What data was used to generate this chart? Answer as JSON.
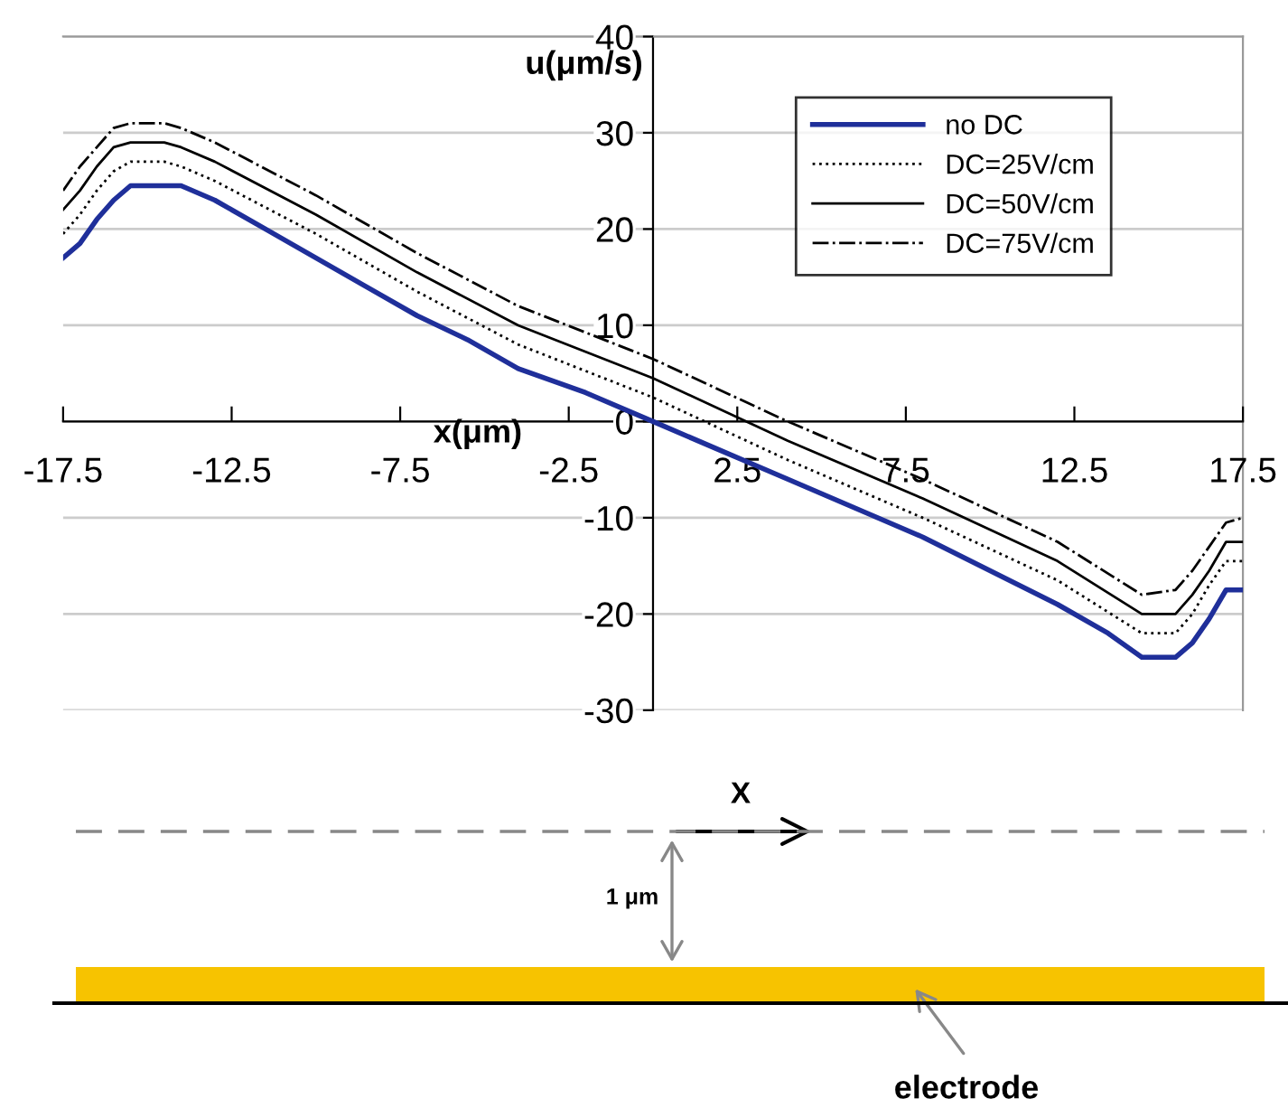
{
  "chart_data": {
    "type": "line",
    "xlabel": "x(μm)",
    "ylabel": "u(μm/s)",
    "xlim": [
      -17.5,
      17.5
    ],
    "ylim": [
      -30,
      40
    ],
    "xticks": [
      -17.5,
      -12.5,
      -7.5,
      -2.5,
      2.5,
      7.5,
      12.5,
      17.5
    ],
    "yticks": [
      -30,
      -20,
      -10,
      0,
      10,
      20,
      30,
      40
    ],
    "grid": "y",
    "legend": "top right",
    "marker": "none",
    "series": [
      {
        "name": "no DC",
        "color": "#1f2f9a",
        "line_style": "solid",
        "x": [
          -17.5,
          -17,
          -16.5,
          -16,
          -15.5,
          -14.5,
          -14,
          -13,
          -11.5,
          -10,
          -8.5,
          -7,
          -5.5,
          -4,
          -2,
          0,
          2,
          4,
          6,
          8,
          10,
          12,
          13.5,
          14.5,
          15.5,
          16,
          16.5,
          17,
          17.5
        ],
        "values": [
          17,
          18.5,
          21,
          23,
          24.5,
          24.5,
          24.5,
          23,
          20,
          17,
          14,
          11,
          8.5,
          5.5,
          3,
          0,
          -3,
          -6,
          -9,
          -12,
          -15.5,
          -19,
          -22,
          -24.5,
          -24.5,
          -23,
          -20.5,
          -17.5,
          -17.5
        ]
      },
      {
        "name": "DC=25V/cm",
        "color": "#000000",
        "line_style": "dotted",
        "x": [
          -17.5,
          -17,
          -16.5,
          -16,
          -15.5,
          -14.5,
          -14,
          -13,
          -10,
          -7,
          -4,
          0,
          4,
          8,
          12,
          14.5,
          15.5,
          16,
          16.5,
          17,
          17.5
        ],
        "values": [
          19.5,
          21.5,
          24,
          26,
          27,
          27,
          26.5,
          25,
          19.5,
          13.5,
          8,
          2.5,
          -4,
          -10,
          -16.5,
          -22,
          -22,
          -20,
          -17,
          -14.5,
          -14.5
        ]
      },
      {
        "name": "DC=50V/cm",
        "color": "#000000",
        "line_style": "solid",
        "x": [
          -17.5,
          -17,
          -16.5,
          -16,
          -15.5,
          -14.5,
          -14,
          -13,
          -10,
          -7,
          -4,
          0,
          4,
          8,
          12,
          14.5,
          15.5,
          16,
          16.5,
          17,
          17.5
        ],
        "values": [
          22,
          24,
          26.5,
          28.5,
          29,
          29,
          28.5,
          27,
          21.5,
          15.5,
          10,
          4.5,
          -2,
          -8,
          -14.5,
          -20,
          -20,
          -18,
          -15.5,
          -12.5,
          -12.5
        ]
      },
      {
        "name": "DC=75V/cm",
        "color": "#000000",
        "line_style": "dashdot",
        "x": [
          -17.5,
          -17,
          -16.5,
          -16,
          -15.5,
          -14.5,
          -14,
          -13,
          -10,
          -7,
          -4,
          0,
          4,
          8,
          12,
          14.5,
          15.5,
          16,
          16.5,
          17,
          17.5
        ],
        "values": [
          24,
          26.5,
          28.5,
          30.5,
          31,
          31,
          30.5,
          29,
          23.5,
          17.5,
          12,
          6.5,
          0,
          -6,
          -12.5,
          -18,
          -17.5,
          -15.5,
          -13,
          -10.5,
          -10
        ]
      }
    ],
    "annotations": [
      "X",
      "1 μm",
      "electrode"
    ]
  }
}
